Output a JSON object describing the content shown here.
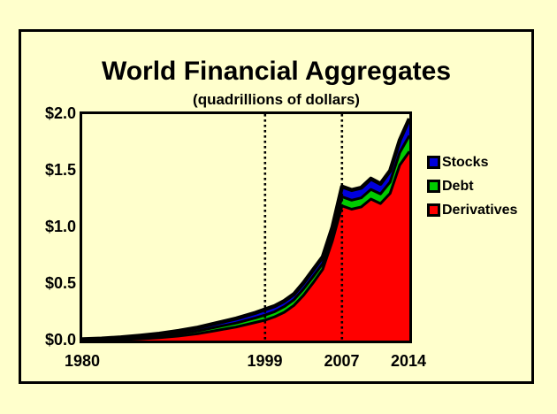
{
  "page": {
    "background_color": "#FFFFCC",
    "frame_color": "#000000"
  },
  "chart_data": {
    "type": "area",
    "stacked": true,
    "title": "World Financial Aggregates",
    "subtitle": "(quadrillions of dollars)",
    "xlim": [
      1980,
      2014
    ],
    "ylim": [
      0,
      2.0
    ],
    "grid": false,
    "legend_position": "right",
    "outline_color": "#000000",
    "x": [
      1980,
      1982,
      1984,
      1986,
      1988,
      1990,
      1992,
      1994,
      1996,
      1998,
      1999,
      2000,
      2001,
      2002,
      2003,
      2004,
      2005,
      2006,
      2007,
      2008,
      2009,
      2010,
      2011,
      2012,
      2013,
      2014
    ],
    "series": [
      {
        "name": "Derivatives",
        "color": "#FF0000",
        "values": [
          0.002,
          0.004,
          0.008,
          0.015,
          0.025,
          0.04,
          0.06,
          0.09,
          0.12,
          0.16,
          0.18,
          0.21,
          0.25,
          0.31,
          0.4,
          0.51,
          0.63,
          0.88,
          1.19,
          1.16,
          1.18,
          1.25,
          1.21,
          1.3,
          1.55,
          1.67
        ]
      },
      {
        "name": "Debt",
        "color": "#00CC00",
        "values": [
          0.005,
          0.007,
          0.01,
          0.013,
          0.016,
          0.02,
          0.025,
          0.03,
          0.035,
          0.04,
          0.045,
          0.045,
          0.05,
          0.05,
          0.055,
          0.055,
          0.05,
          0.05,
          0.08,
          0.08,
          0.08,
          0.085,
          0.085,
          0.1,
          0.11,
          0.14
        ]
      },
      {
        "name": "Stocks",
        "color": "#0000DD",
        "values": [
          0.005,
          0.007,
          0.01,
          0.015,
          0.02,
          0.025,
          0.03,
          0.035,
          0.04,
          0.045,
          0.05,
          0.05,
          0.05,
          0.05,
          0.055,
          0.06,
          0.06,
          0.07,
          0.09,
          0.09,
          0.09,
          0.095,
          0.09,
          0.1,
          0.11,
          0.15
        ]
      }
    ],
    "legend": [
      {
        "label": "Stocks",
        "color": "#0000DD"
      },
      {
        "label": "Debt",
        "color": "#00CC00"
      },
      {
        "label": "Derivatives",
        "color": "#FF0000"
      }
    ],
    "y_ticks": [
      "$2.0",
      "$1.5",
      "$1.0",
      "$0.5",
      "$0.0"
    ],
    "y_tick_values": [
      2.0,
      1.5,
      1.0,
      0.5,
      0.0
    ],
    "x_ticks": [
      {
        "label": "1980",
        "year": 1980
      },
      {
        "label": "1999",
        "year": 1999
      },
      {
        "label": "2007",
        "year": 2007
      },
      {
        "label": "2014",
        "year": 2014
      }
    ],
    "reference_lines_years": [
      1999,
      2007
    ]
  }
}
